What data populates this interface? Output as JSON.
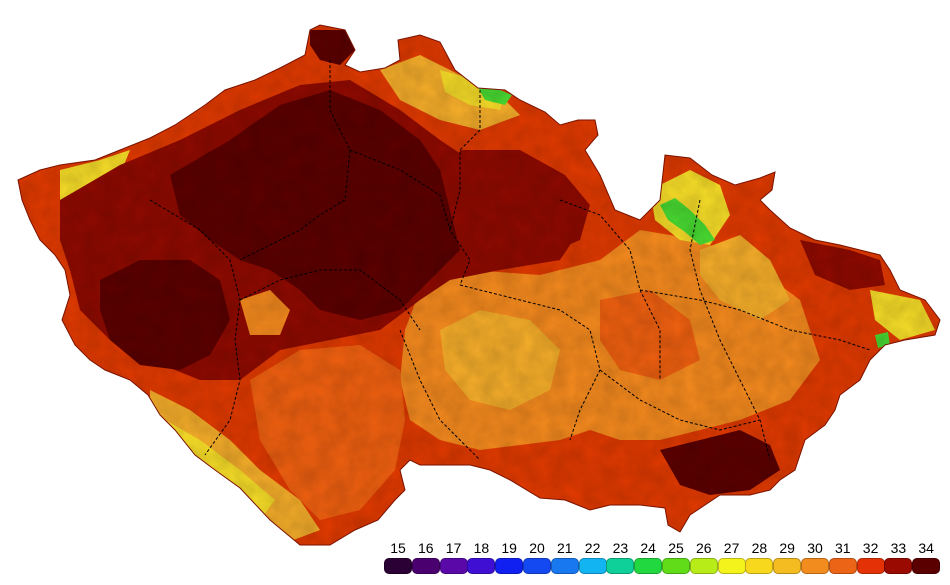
{
  "map": {
    "shape_name": "czech-republic-temperature-map",
    "colors": {
      "very_hot": "#5c0000",
      "hot": "#8f0a00",
      "warm": "#e23a00",
      "mild": "#f06010",
      "moderate": "#f58a1e",
      "cool": "#f6ae2a",
      "yellow": "#f8de28",
      "green": "#49dc32",
      "border": "#000000"
    }
  },
  "legend": {
    "items": [
      {
        "label": "15",
        "color": "#2a0035"
      },
      {
        "label": "16",
        "color": "#4b0070"
      },
      {
        "label": "17",
        "color": "#5a08a8"
      },
      {
        "label": "18",
        "color": "#3f10d4"
      },
      {
        "label": "19",
        "color": "#1020f0"
      },
      {
        "label": "20",
        "color": "#1448f0"
      },
      {
        "label": "21",
        "color": "#1878f0"
      },
      {
        "label": "22",
        "color": "#12b4f2"
      },
      {
        "label": "23",
        "color": "#10d09a"
      },
      {
        "label": "24",
        "color": "#22d840"
      },
      {
        "label": "25",
        "color": "#60dc18"
      },
      {
        "label": "26",
        "color": "#b8ec18"
      },
      {
        "label": "27",
        "color": "#f4f41c"
      },
      {
        "label": "28",
        "color": "#f8d81c"
      },
      {
        "label": "29",
        "color": "#f4bc20"
      },
      {
        "label": "30",
        "color": "#f28c1e"
      },
      {
        "label": "31",
        "color": "#ec6416"
      },
      {
        "label": "32",
        "color": "#e43206"
      },
      {
        "label": "33",
        "color": "#9a0a00"
      },
      {
        "label": "34",
        "color": "#5a0000"
      }
    ]
  }
}
